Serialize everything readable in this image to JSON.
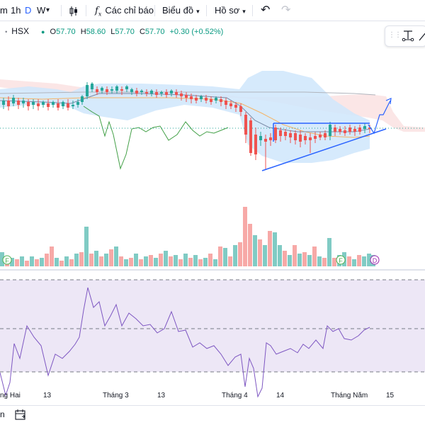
{
  "toolbar": {
    "tf_minutes": "m",
    "tf_hour": "1h",
    "tf_day": "D",
    "tf_week": "W",
    "indicators_label": "Các chỉ báo",
    "chart_type_label": "Biểu đồ",
    "profile_label": "Hồ sơ"
  },
  "legend": {
    "exchange": "HSX",
    "open_label": "O",
    "open": "57.70",
    "high_label": "H",
    "high": "58.60",
    "low_label": "L",
    "low": "57.70",
    "close_label": "C",
    "close": "57.70",
    "change": "+0.30 (+0.52%)"
  },
  "event_markers": {
    "f": "F",
    "d": "D"
  },
  "x_axis": {
    "labels": [
      "ng Hai",
      "13",
      "Tháng 3",
      "13",
      "Tháng 4",
      "14",
      "Tháng Năm",
      "15"
    ]
  },
  "colors": {
    "up": "#26a69a",
    "down": "#ef5350",
    "volume_up": "#80cbc4",
    "volume_down": "#f7a9a7",
    "rsi_line": "#7e57c2",
    "rsi_band": "#ede7f6",
    "cloud_red": "#fbe3e3",
    "bollinger_fill": "#cfe6fb",
    "drawing": "#2962ff",
    "lagging_line": "#43a047",
    "ma_orange": "#f5b366"
  },
  "chart_data": [
    {
      "type": "candlestick",
      "description_axis": "price",
      "last_close": 57.7,
      "annotations": [
        "ascending triangle",
        "projection arrow up"
      ]
    },
    {
      "type": "bar",
      "name": "volume",
      "note": "relative heights"
    },
    {
      "type": "line",
      "name": "RSI",
      "levels": [
        70,
        50,
        30
      ]
    }
  ]
}
